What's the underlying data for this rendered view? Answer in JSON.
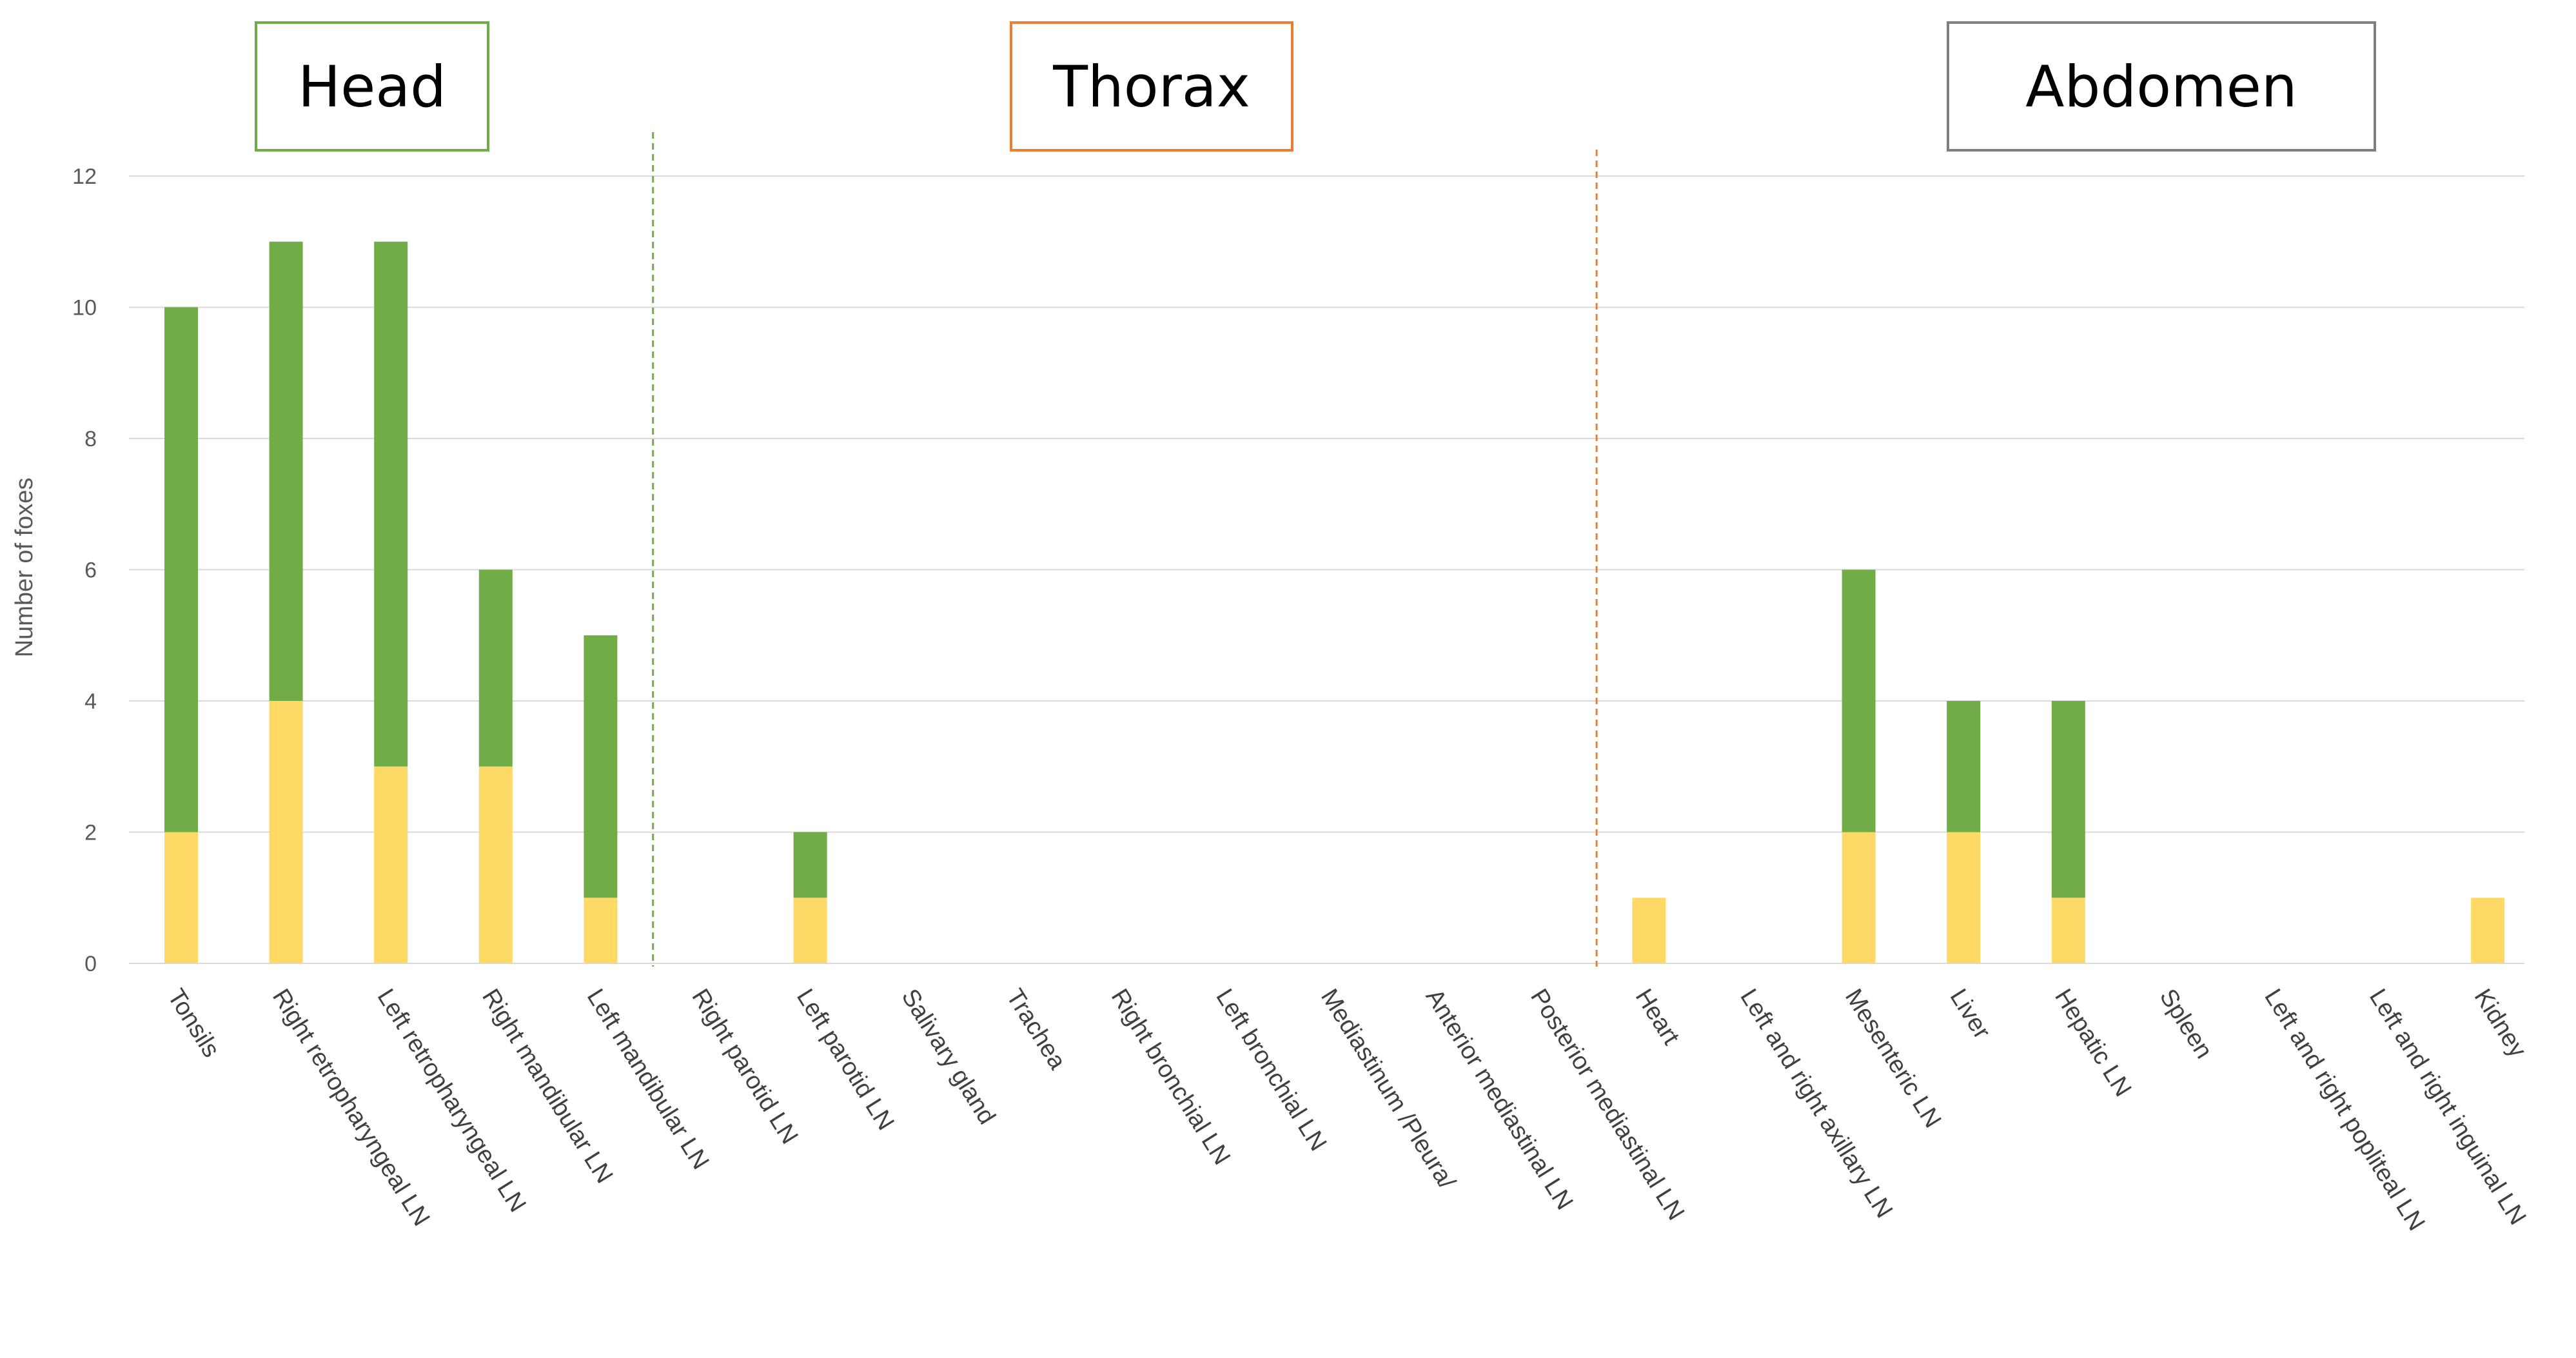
{
  "chart_data": {
    "type": "bar",
    "stacked": true,
    "ylabel": "Number of foxes",
    "ylim": [
      0,
      12
    ],
    "yticks": [
      0,
      2,
      4,
      6,
      8,
      10,
      12
    ],
    "grid": true,
    "categories": [
      "Tonsils",
      "Right retropharyngeal LN",
      "Left retropharyngeal LN",
      "Right mandibular LN",
      "Left mandibular LN",
      "Right parotid LN",
      "Left parotid LN",
      "Salivary gland",
      "Trachea",
      "Right bronchial LN",
      "Left bronchial LN",
      "Mediastinum /Pleura/",
      "Anterior mediastinal LN",
      "Posterior mediastinal LN",
      "Heart",
      "Left and right axillary LN",
      "Mesenteric LN",
      "Liver",
      "Hepatic LN",
      "Spleen",
      "Left and right popliteal LN",
      "Left and right inguinal LN",
      "Kidney"
    ],
    "series": [
      {
        "color": "#FFD966",
        "values": [
          2,
          4,
          3,
          3,
          1,
          0,
          1,
          0,
          0,
          0,
          0,
          0,
          0,
          0,
          1,
          0,
          2,
          2,
          1,
          0,
          0,
          0,
          1
        ]
      },
      {
        "color": "#70AD47",
        "values": [
          8,
          7,
          8,
          3,
          4,
          0,
          1,
          0,
          0,
          0,
          0,
          0,
          0,
          0,
          0,
          0,
          4,
          2,
          3,
          0,
          0,
          0,
          0
        ]
      }
    ],
    "regions": [
      {
        "label": "Head",
        "border_color": "#70AD47",
        "first_category": 0
      },
      {
        "label": "Thorax",
        "border_color": "#ED7D31",
        "first_category": 5
      },
      {
        "label": "Abdomen",
        "border_color": "#7F7F7F",
        "first_category": 14
      }
    ],
    "dividers": [
      {
        "after_category": 4,
        "color": "#70AD47"
      },
      {
        "after_category": 13,
        "color": "#ED7D31"
      }
    ],
    "gridline_color": "#D9D9D9"
  }
}
